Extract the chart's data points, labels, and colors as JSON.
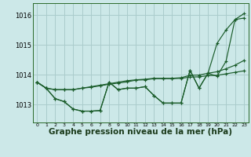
{
  "background_color": "#cce8e8",
  "grid_color": "#aacccc",
  "line_color": "#1a5c2a",
  "marker_color": "#1a5c2a",
  "xlabel": "Graphe pression niveau de la mer (hPa)",
  "xlabel_fontsize": 7.5,
  "ytick_labels": [
    "1013",
    "1014",
    "1015",
    "1016"
  ],
  "ytick_values": [
    1013,
    1014,
    1015,
    1016
  ],
  "ylim": [
    1012.4,
    1016.4
  ],
  "xlim": [
    -0.5,
    23.5
  ],
  "xticks": [
    0,
    1,
    2,
    3,
    4,
    5,
    6,
    7,
    8,
    9,
    10,
    11,
    12,
    13,
    14,
    15,
    16,
    17,
    18,
    19,
    20,
    21,
    22,
    23
  ],
  "series": [
    [
      1013.75,
      1013.55,
      1013.2,
      1013.1,
      1012.85,
      1012.78,
      1012.78,
      1012.8,
      1013.75,
      1013.5,
      1013.55,
      1013.55,
      1013.6,
      1013.3,
      1013.05,
      1013.05,
      1013.05,
      1014.15,
      1013.55,
      1014.05,
      1013.95,
      1014.45,
      1015.85,
      1015.9
    ],
    [
      1013.75,
      1013.55,
      1013.5,
      1013.5,
      1013.5,
      1013.55,
      1013.58,
      1013.63,
      1013.68,
      1013.72,
      1013.76,
      1013.82,
      1013.83,
      1013.87,
      1013.87,
      1013.87,
      1013.88,
      1013.92,
      1013.93,
      1013.97,
      1013.98,
      1014.03,
      1014.08,
      1014.13
    ],
    [
      1013.75,
      1013.55,
      1013.5,
      1013.5,
      1013.5,
      1013.55,
      1013.6,
      1013.65,
      1013.7,
      1013.75,
      1013.8,
      1013.83,
      1013.85,
      1013.88,
      1013.88,
      1013.88,
      1013.9,
      1013.98,
      1013.99,
      1014.05,
      1014.1,
      1014.2,
      1014.32,
      1014.48
    ],
    [
      1013.75,
      1013.55,
      1013.2,
      1013.1,
      1012.85,
      1012.78,
      1012.78,
      1012.8,
      1013.75,
      1013.5,
      1013.55,
      1013.55,
      1013.6,
      1013.3,
      1013.05,
      1013.05,
      1013.05,
      1014.15,
      1013.55,
      1014.05,
      1015.05,
      1015.5,
      1015.85,
      1016.05
    ]
  ]
}
